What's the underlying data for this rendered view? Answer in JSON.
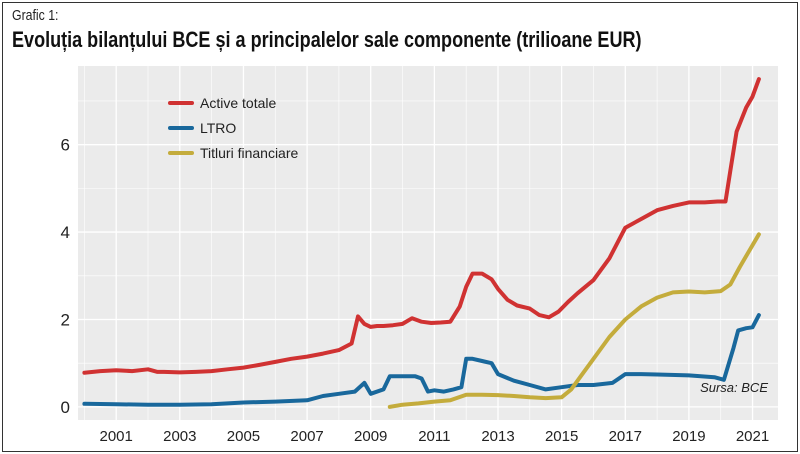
{
  "figure": {
    "label": "Grafic 1:",
    "title": "Evoluția bilanțului BCE și a principalelor sale componente (trilioane EUR)",
    "source": "Sursa: BCE"
  },
  "colors": {
    "active_totale": "#d03232",
    "ltro": "#19689c",
    "titluri": "#c4ac3c",
    "panel_background": "#ebebeb",
    "grid": "#ffffff"
  },
  "chart_data": {
    "type": "line",
    "title": "Evoluția bilanțului BCE și a principalelor sale componente (trilioane EUR)",
    "xlabel": "",
    "ylabel": "",
    "xlim": [
      1999.8,
      2021.8
    ],
    "ylim": [
      -0.3,
      7.8
    ],
    "x_ticks": [
      2001,
      2003,
      2005,
      2007,
      2009,
      2011,
      2013,
      2015,
      2017,
      2019,
      2021
    ],
    "x_tick_labels": [
      "2001",
      "2003",
      "2005",
      "2007",
      "2009",
      "2011",
      "2013",
      "2015",
      "2017",
      "2019",
      "2021"
    ],
    "y_ticks": [
      0,
      2,
      4,
      6
    ],
    "y_tick_labels": [
      "0",
      "2",
      "4",
      "6"
    ],
    "grid": true,
    "legend_position": "top-left",
    "series": [
      {
        "name": "Active totale",
        "x": [
          2000.0,
          2000.5,
          2001.0,
          2001.5,
          2002.0,
          2002.3,
          2002.5,
          2003.0,
          2003.5,
          2004.0,
          2004.5,
          2005.0,
          2005.5,
          2006.0,
          2006.5,
          2007.0,
          2007.5,
          2008.0,
          2008.4,
          2008.6,
          2008.8,
          2009.0,
          2009.2,
          2009.4,
          2009.7,
          2010.0,
          2010.3,
          2010.6,
          2010.9,
          2011.2,
          2011.5,
          2011.8,
          2012.0,
          2012.2,
          2012.5,
          2012.8,
          2013.0,
          2013.3,
          2013.6,
          2014.0,
          2014.3,
          2014.6,
          2014.9,
          2015.2,
          2015.5,
          2016.0,
          2016.5,
          2017.0,
          2017.5,
          2018.0,
          2018.5,
          2019.0,
          2019.5,
          2019.9,
          2020.15,
          2020.3,
          2020.5,
          2020.8,
          2021.0,
          2021.2
        ],
        "values": [
          0.78,
          0.82,
          0.84,
          0.82,
          0.86,
          0.8,
          0.8,
          0.79,
          0.8,
          0.82,
          0.86,
          0.9,
          0.96,
          1.03,
          1.1,
          1.15,
          1.22,
          1.3,
          1.45,
          2.07,
          1.9,
          1.83,
          1.85,
          1.85,
          1.87,
          1.9,
          2.03,
          1.95,
          1.92,
          1.93,
          1.95,
          2.3,
          2.75,
          3.05,
          3.05,
          2.92,
          2.7,
          2.45,
          2.32,
          2.25,
          2.1,
          2.05,
          2.18,
          2.4,
          2.6,
          2.9,
          3.4,
          4.1,
          4.3,
          4.5,
          4.6,
          4.68,
          4.68,
          4.7,
          4.7,
          5.4,
          6.3,
          6.85,
          7.1,
          7.5
        ]
      },
      {
        "name": "LTRO",
        "x": [
          2000.0,
          2001.0,
          2002.0,
          2003.0,
          2004.0,
          2005.0,
          2006.0,
          2007.0,
          2007.5,
          2008.0,
          2008.5,
          2008.8,
          2009.0,
          2009.4,
          2009.6,
          2010.0,
          2010.4,
          2010.6,
          2010.8,
          2011.0,
          2011.3,
          2011.6,
          2011.85,
          2012.0,
          2012.2,
          2012.5,
          2012.8,
          2013.0,
          2013.5,
          2014.0,
          2014.5,
          2015.0,
          2015.5,
          2016.0,
          2016.6,
          2017.0,
          2017.5,
          2018.0,
          2019.0,
          2019.8,
          2020.1,
          2020.4,
          2020.55,
          2020.8,
          2021.0,
          2021.2
        ],
        "values": [
          0.07,
          0.06,
          0.05,
          0.05,
          0.06,
          0.1,
          0.12,
          0.15,
          0.25,
          0.3,
          0.35,
          0.55,
          0.3,
          0.4,
          0.7,
          0.7,
          0.7,
          0.65,
          0.35,
          0.38,
          0.35,
          0.4,
          0.45,
          1.1,
          1.1,
          1.05,
          1.0,
          0.75,
          0.6,
          0.5,
          0.4,
          0.45,
          0.5,
          0.5,
          0.55,
          0.75,
          0.75,
          0.74,
          0.72,
          0.68,
          0.62,
          1.35,
          1.75,
          1.8,
          1.82,
          2.1
        ]
      },
      {
        "name": "Titluri financiare",
        "x": [
          2009.6,
          2010.0,
          2010.5,
          2011.0,
          2011.5,
          2012.0,
          2012.5,
          2013.0,
          2013.5,
          2014.0,
          2014.5,
          2015.0,
          2015.3,
          2015.6,
          2016.0,
          2016.5,
          2017.0,
          2017.5,
          2018.0,
          2018.5,
          2019.0,
          2019.5,
          2020.0,
          2020.3,
          2020.6,
          2021.0,
          2021.2
        ],
        "values": [
          0.0,
          0.05,
          0.08,
          0.12,
          0.15,
          0.28,
          0.28,
          0.27,
          0.25,
          0.22,
          0.2,
          0.22,
          0.4,
          0.7,
          1.1,
          1.6,
          2.0,
          2.3,
          2.5,
          2.62,
          2.64,
          2.62,
          2.65,
          2.8,
          3.2,
          3.7,
          3.95
        ]
      }
    ]
  }
}
